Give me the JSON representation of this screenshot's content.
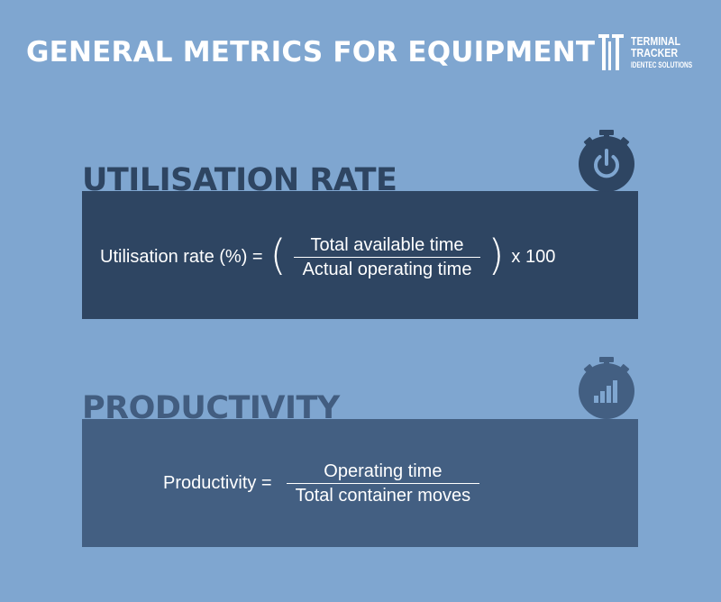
{
  "title": "GENERAL METRICS FOR EQUIPMENT",
  "logo": {
    "line1": "TERMINAL",
    "line2": "TRACKER",
    "line3": "IDENTEC SOLUTIONS"
  },
  "utilisation": {
    "heading": "UTILISATION RATE",
    "icon": "power-stopwatch-icon",
    "lhs": "Utilisation rate (%) =",
    "open_paren": "(",
    "numerator": "Total available time",
    "denominator": "Actual operating time",
    "close_paren": ")",
    "tail": "x 100"
  },
  "productivity": {
    "heading": "PRODUCTIVITY",
    "icon": "bar-chart-stopwatch-icon",
    "lhs": "Productivity =",
    "numerator": "Operating time",
    "denominator": "Total container moves"
  },
  "colors": {
    "background": "#7fa6d0",
    "panel_dark": "#2e4562",
    "panel_mid": "#435f82",
    "text": "#ffffff"
  }
}
